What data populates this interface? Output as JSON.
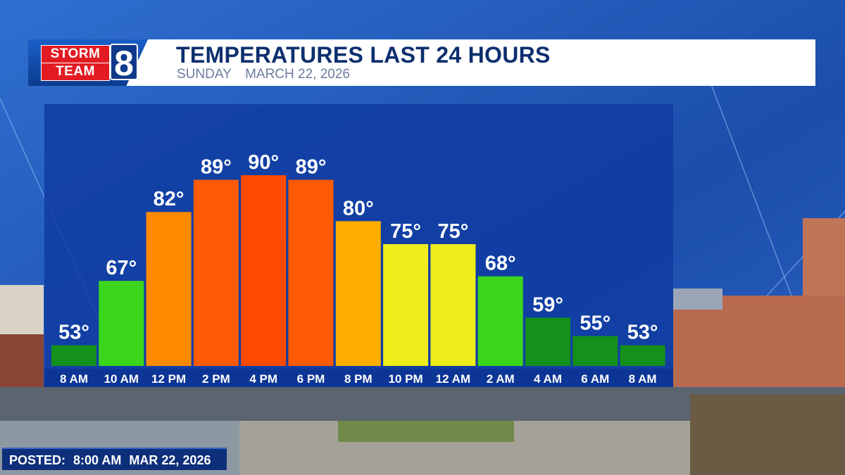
{
  "header": {
    "title": "TEMPERATURES LAST 24 HOURS",
    "day": "SUNDAY",
    "date": "MARCH 22, 2026",
    "logo_line1": "STORM",
    "logo_line2": "TEAM",
    "logo_number": "8"
  },
  "footer": {
    "posted_label": "POSTED:",
    "posted_time": "8:00 AM",
    "posted_date": "MAR 22, 2026"
  },
  "colors": {
    "bg": "#1a3f8a",
    "chart_panel": "#0f3aa0",
    "header_title": "#0d2f6e"
  },
  "chart_data": {
    "type": "bar",
    "categories": [
      "8 AM",
      "10 AM",
      "12 PM",
      "2 PM",
      "4 PM",
      "6 PM",
      "8 PM",
      "10 PM",
      "12 AM",
      "2 AM",
      "4 AM",
      "6 AM",
      "8 AM"
    ],
    "values": [
      53,
      67,
      82,
      89,
      90,
      89,
      80,
      75,
      75,
      68,
      59,
      55,
      53
    ],
    "value_labels": [
      "53°",
      "67°",
      "82°",
      "89°",
      "90°",
      "89°",
      "80°",
      "75°",
      "75°",
      "68°",
      "59°",
      "55°",
      "53°"
    ],
    "bar_colors": [
      "#15901a",
      "#3bd61c",
      "#ff8a00",
      "#ff5a05",
      "#ff4a00",
      "#ff5a05",
      "#ffae00",
      "#f0ee1a",
      "#f0ee1a",
      "#3bd61c",
      "#15901a",
      "#15901a",
      "#15901a"
    ],
    "ylim": [
      45,
      95
    ],
    "title": "TEMPERATURES LAST 24 HOURS",
    "xlabel": "",
    "ylabel": "",
    "grid": false,
    "legend": "none"
  }
}
